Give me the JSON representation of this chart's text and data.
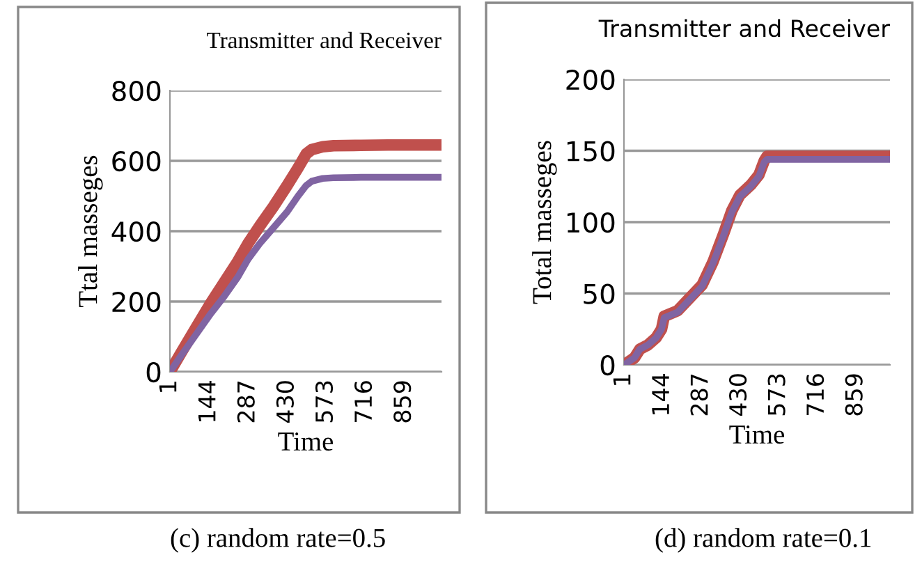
{
  "chart_data": [
    {
      "type": "line",
      "title": "Transmitter and Receiver",
      "xlabel": "Time",
      "ylabel": "Ttal masseges",
      "annotations": [
        "(c) random rate=0.5"
      ],
      "xlim": [
        1,
        995
      ],
      "xticks": [
        1,
        144,
        287,
        430,
        573,
        716,
        859
      ],
      "ylim": [
        0,
        800
      ],
      "yticks": [
        0,
        200,
        400,
        600,
        800
      ],
      "grid": "y",
      "marker": "none",
      "line_style": "solid",
      "series": [
        {
          "color": "#c0504d",
          "x": [
            1,
            50,
            100,
            150,
            200,
            250,
            287,
            330,
            380,
            430,
            470,
            500,
            520,
            560,
            600,
            700,
            800,
            995
          ],
          "values": [
            0,
            65,
            130,
            195,
            255,
            315,
            365,
            415,
            470,
            530,
            580,
            620,
            632,
            640,
            643,
            644,
            645,
            645
          ]
        },
        {
          "color": "#8064a2",
          "x": [
            1,
            50,
            100,
            150,
            200,
            250,
            287,
            330,
            380,
            430,
            470,
            500,
            520,
            560,
            600,
            700,
            800,
            995
          ],
          "values": [
            0,
            55,
            110,
            165,
            215,
            270,
            320,
            365,
            410,
            455,
            500,
            530,
            542,
            550,
            552,
            553,
            553,
            553
          ]
        }
      ]
    },
    {
      "type": "line",
      "title": "Transmitter and Receiver",
      "xlabel": "Time",
      "ylabel": "Total masseges",
      "annotations": [
        "(d) random rate=0.1"
      ],
      "xlim": [
        1,
        985
      ],
      "xticks": [
        1,
        144,
        287,
        430,
        573,
        716,
        859
      ],
      "ylim": [
        0,
        200
      ],
      "yticks": [
        0,
        50,
        100,
        150,
        200
      ],
      "grid": "y",
      "marker": "none",
      "line_style": "solid",
      "series": [
        {
          "color": "#c0504d",
          "x": [
            1,
            40,
            60,
            90,
            120,
            140,
            150,
            200,
            250,
            290,
            330,
            370,
            400,
            430,
            470,
            500,
            520,
            530,
            600,
            700,
            800,
            985
          ],
          "values": [
            0,
            5,
            11,
            14,
            19,
            25,
            34,
            38,
            48,
            56,
            72,
            92,
            108,
            119,
            126,
            133,
            143,
            146,
            146,
            146,
            146,
            146
          ]
        },
        {
          "color": "#8064a2",
          "x": [
            1,
            40,
            60,
            90,
            120,
            140,
            150,
            200,
            250,
            290,
            330,
            370,
            400,
            430,
            470,
            500,
            520,
            530,
            600,
            700,
            800,
            985
          ],
          "values": [
            0,
            5,
            11,
            14,
            19,
            25,
            33,
            37,
            47,
            55,
            71,
            91,
            107,
            118,
            125,
            132,
            142,
            144,
            144,
            144,
            144,
            144
          ]
        }
      ]
    }
  ]
}
